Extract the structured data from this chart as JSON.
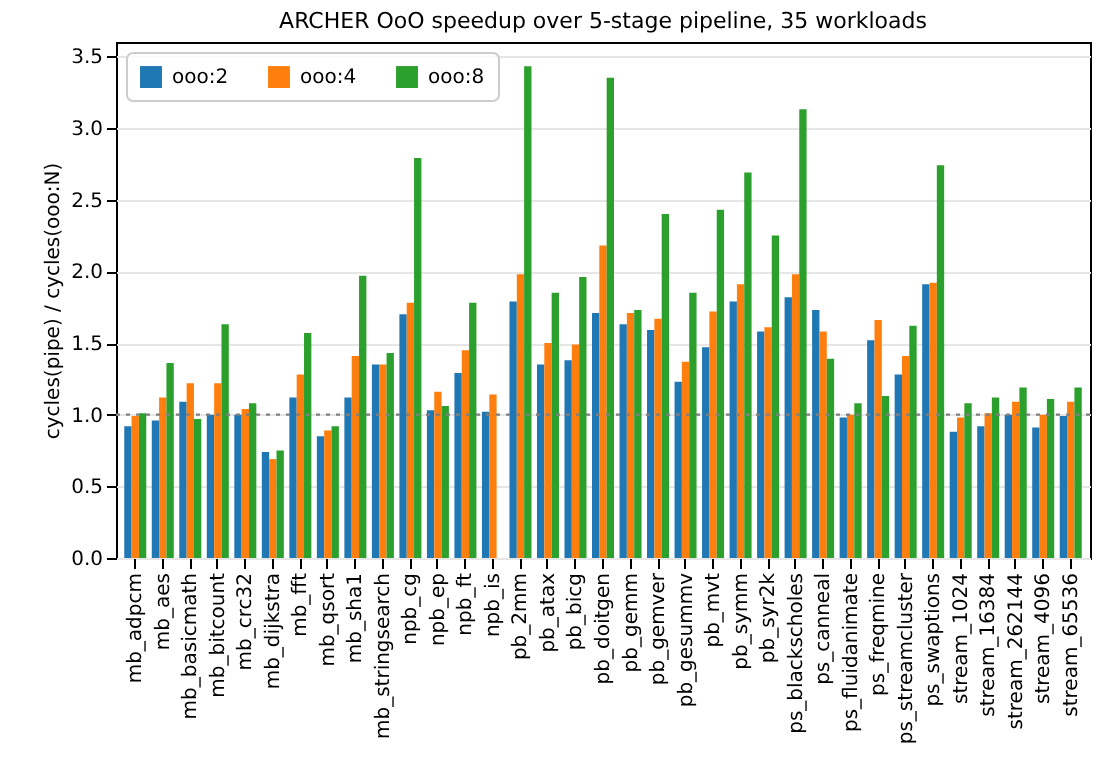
{
  "chart_data": {
    "type": "bar",
    "title": "ARCHER OoO speedup over 5-stage pipeline, 35 workloads",
    "ylabel": "cycles(pipe) / cycles(ooo:N)",
    "categories": [
      "mb_adpcm",
      "mb_aes",
      "mb_basicmath",
      "mb_bitcount",
      "mb_crc32",
      "mb_dijkstra",
      "mb_fft",
      "mb_qsort",
      "mb_sha1",
      "mb_stringsearch",
      "npb_cg",
      "npb_ep",
      "npb_ft",
      "npb_is",
      "pb_2mm",
      "pb_atax",
      "pb_bicg",
      "pb_doitgen",
      "pb_gemm",
      "pb_gemver",
      "pb_gesummv",
      "pb_mvt",
      "pb_symm",
      "pb_syr2k",
      "ps_blackscholes",
      "ps_canneal",
      "ps_fluidanimate",
      "ps_freqmine",
      "ps_streamcluster",
      "ps_swaptions",
      "stream_1024",
      "stream_16384",
      "stream_262144",
      "stream_4096",
      "stream_65536"
    ],
    "series": [
      {
        "name": "ooo:2",
        "color": "#1f77b4",
        "values": [
          0.92,
          0.96,
          1.09,
          1.0,
          1.0,
          0.74,
          1.12,
          0.85,
          1.12,
          1.35,
          1.7,
          1.03,
          1.29,
          1.02,
          1.79,
          1.35,
          1.38,
          1.71,
          1.63,
          1.59,
          1.23,
          1.47,
          1.79,
          1.58,
          1.82,
          1.73,
          0.98,
          1.52,
          1.28,
          1.91,
          0.88,
          0.92,
          1.0,
          0.91,
          0.99
        ]
      },
      {
        "name": "ooo:4",
        "color": "#ff7f0e",
        "values": [
          0.99,
          1.12,
          1.22,
          1.22,
          1.04,
          0.69,
          1.28,
          0.89,
          1.41,
          1.35,
          1.78,
          1.16,
          1.45,
          1.14,
          1.98,
          1.5,
          1.49,
          2.18,
          1.71,
          1.67,
          1.37,
          1.72,
          1.91,
          1.61,
          1.98,
          1.58,
          1.0,
          1.66,
          1.41,
          1.92,
          0.98,
          1.01,
          1.09,
          1.0,
          1.09
        ]
      },
      {
        "name": "ooo:8",
        "color": "#2ca02c",
        "values": [
          1.01,
          1.36,
          0.97,
          1.63,
          1.08,
          0.75,
          1.57,
          0.92,
          1.97,
          1.43,
          2.79,
          1.06,
          1.78,
          null,
          3.43,
          1.85,
          1.96,
          3.35,
          1.73,
          2.4,
          1.85,
          2.43,
          2.69,
          2.25,
          3.13,
          1.39,
          1.08,
          1.13,
          1.62,
          2.74,
          1.08,
          1.12,
          1.19,
          1.11,
          1.19
        ]
      }
    ],
    "ylim": [
      0,
      3.6
    ],
    "yticks": [
      {
        "value": 0,
        "label": "0.0"
      },
      0.5,
      {
        "value": 1,
        "label": "1.0"
      },
      1.5,
      {
        "value": 2,
        "label": "2.0"
      },
      2.5,
      {
        "value": 3,
        "label": "3.0"
      },
      3.5
    ],
    "ref_lines": [
      {
        "axis": "y",
        "value": 1,
        "color": "#808080",
        "line_style": "dotted"
      }
    ],
    "grid": "y",
    "legend": "top left"
  }
}
